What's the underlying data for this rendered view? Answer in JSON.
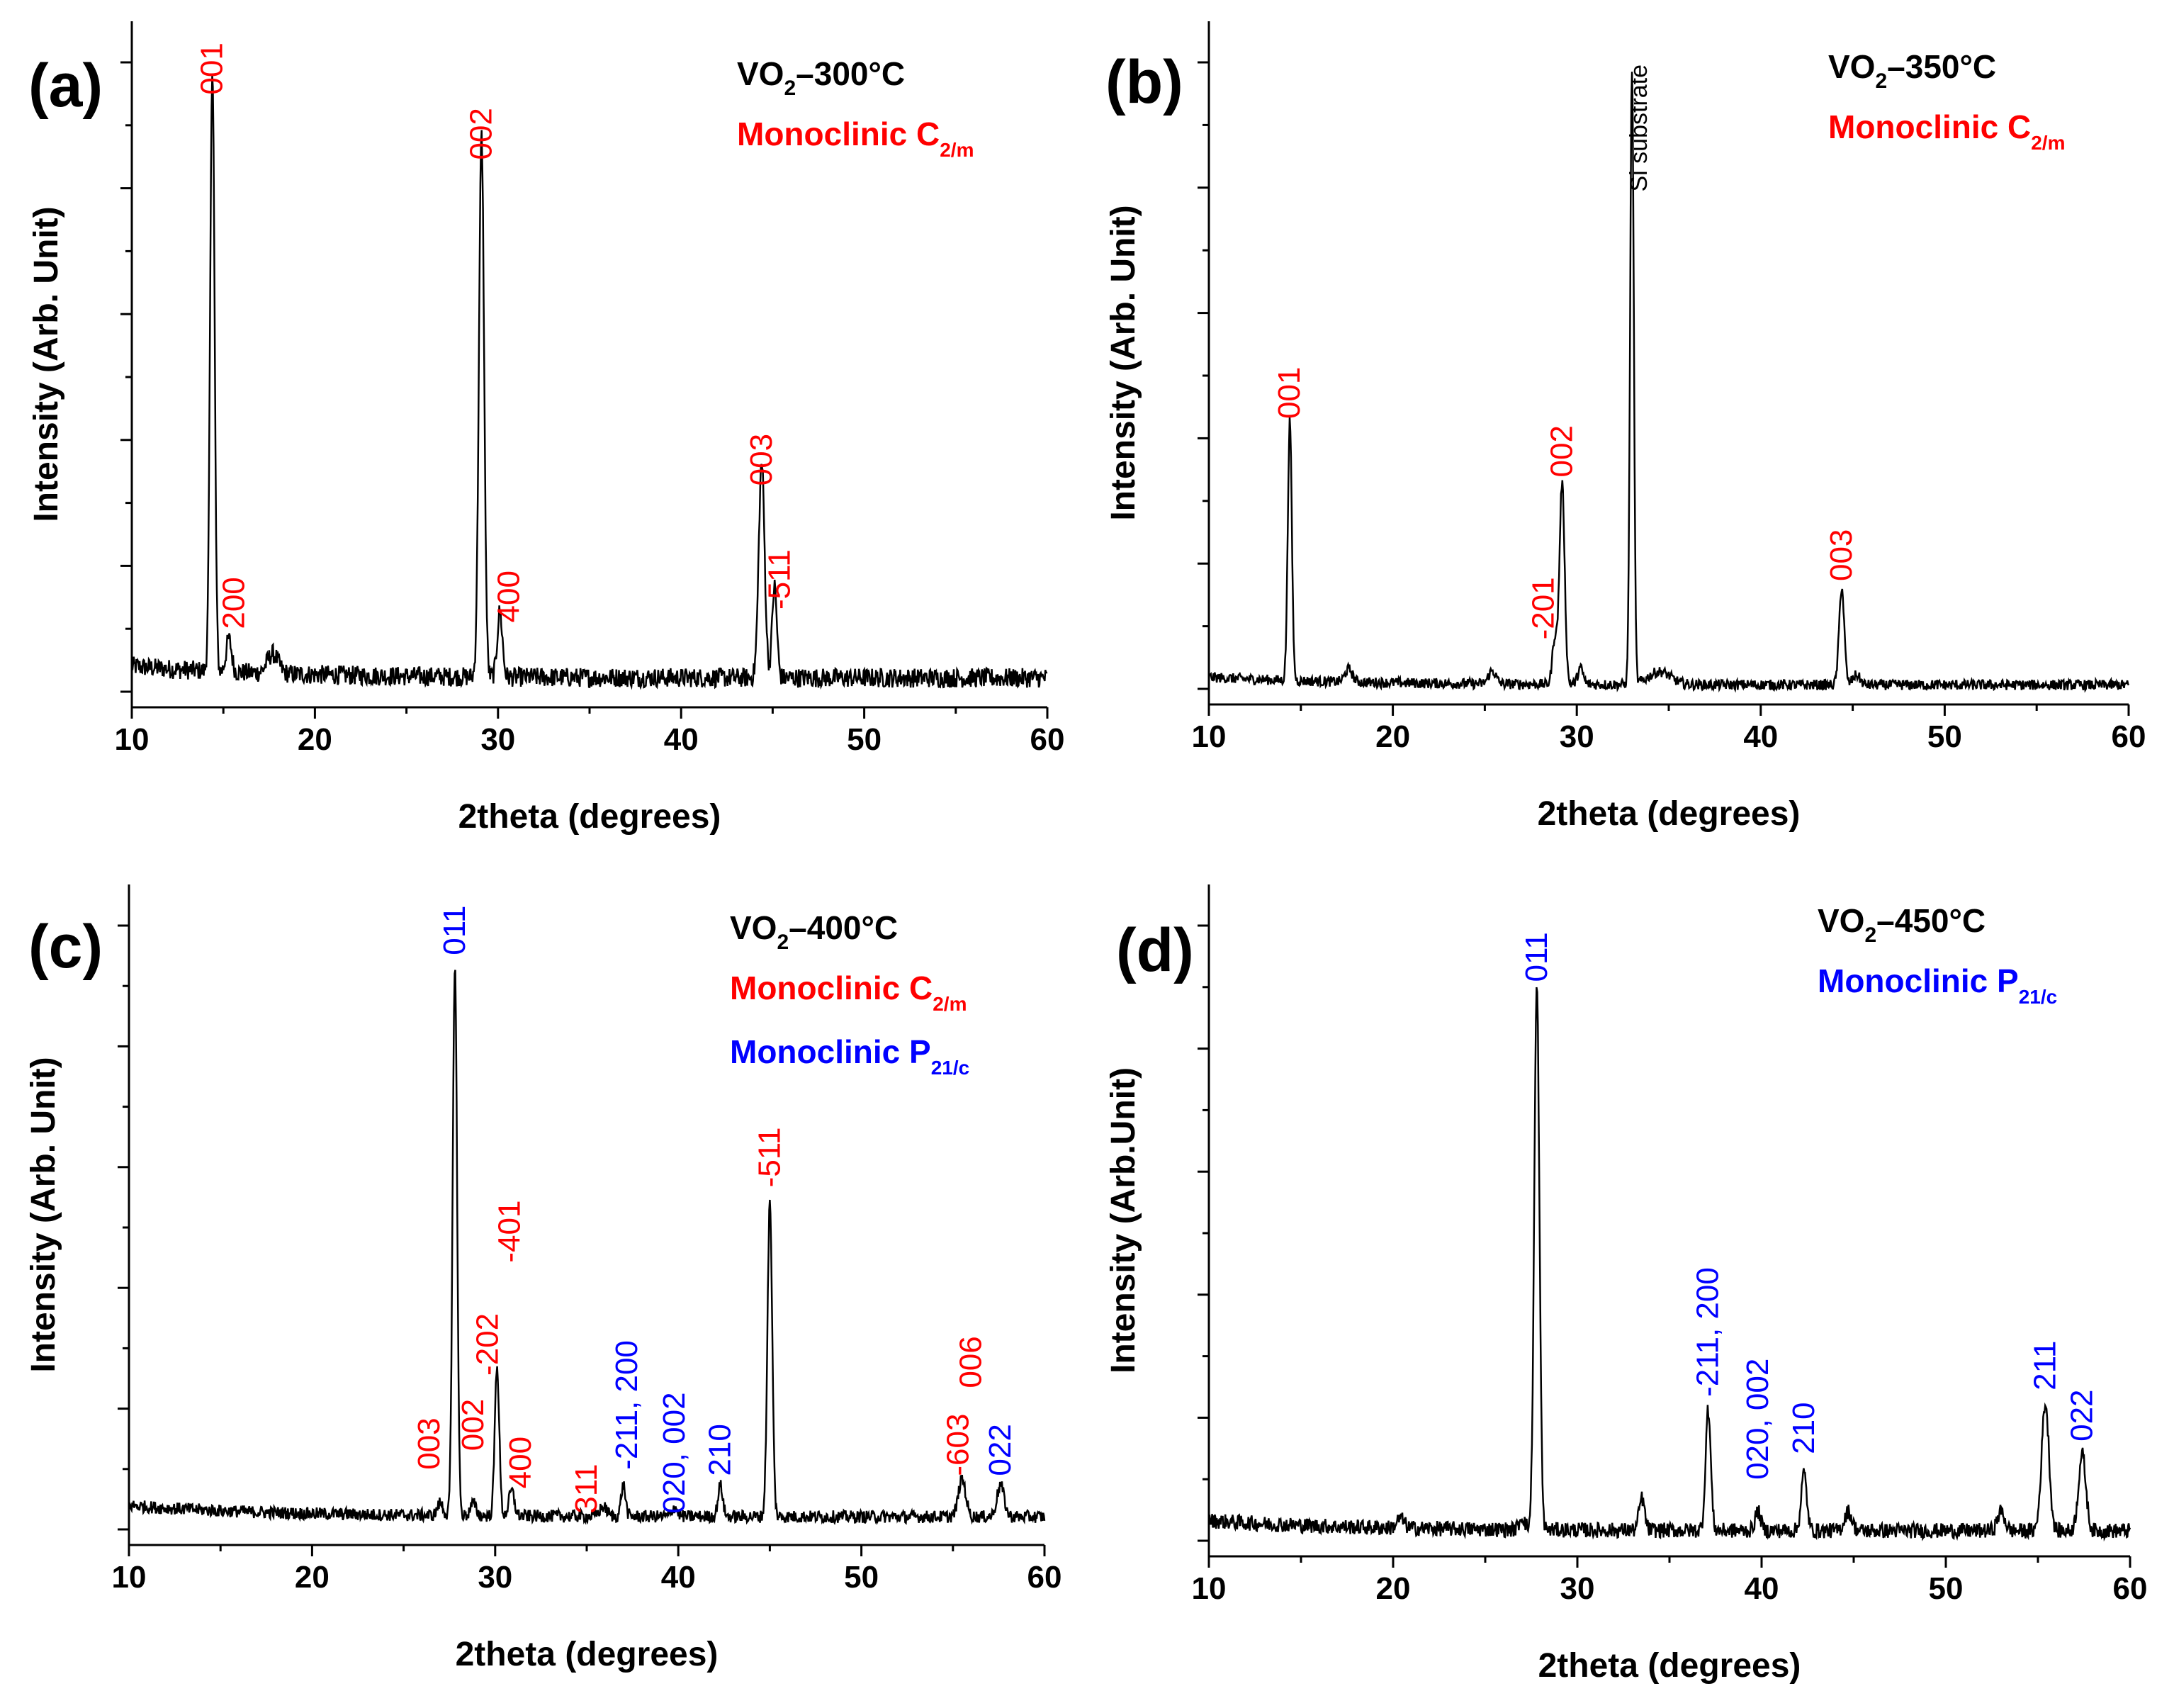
{
  "panel_labels": [
    "(a)",
    "(b)",
    "(c)",
    "(d)"
  ],
  "chart_data": [
    {
      "type": "line",
      "panel": "(a)",
      "title": "VO2_300°C",
      "title_base": "VO",
      "title_sub": "2",
      "title_rest": "–300°C",
      "phases": [
        {
          "base": "Monoclinic C",
          "sub": "2/m",
          "color": "#ff0000"
        }
      ],
      "xlabel": "2theta (degrees)",
      "ylabel": "Intensity (Arb. Unit)",
      "xlim": [
        10,
        60
      ],
      "ylim": [
        0,
        1
      ],
      "xticks": [
        10,
        20,
        30,
        40,
        50,
        60
      ],
      "xtick_labels": [
        "10",
        "20",
        "30",
        "40",
        "50",
        "60"
      ],
      "baseline": 0.045,
      "noise": 0.015,
      "peaks": [
        {
          "x": 14.4,
          "h": 0.93,
          "w": 0.12
        },
        {
          "x": 15.3,
          "h": 0.05,
          "w": 0.15
        },
        {
          "x": 17.7,
          "h": 0.03,
          "w": 0.3
        },
        {
          "x": 29.1,
          "h": 0.83,
          "w": 0.14
        },
        {
          "x": 30.1,
          "h": 0.1,
          "w": 0.14
        },
        {
          "x": 44.4,
          "h": 0.33,
          "w": 0.16
        },
        {
          "x": 45.1,
          "h": 0.14,
          "w": 0.13
        }
      ],
      "peak_labels": [
        {
          "text": "001",
          "x": 14.4,
          "y": 0.94,
          "color": "#ff0000"
        },
        {
          "text": "200",
          "x": 15.6,
          "y": 0.12,
          "color": "#ff0000"
        },
        {
          "text": "002",
          "x": 29.1,
          "y": 0.84,
          "color": "#ff0000"
        },
        {
          "text": "400",
          "x": 30.6,
          "y": 0.13,
          "color": "#ff0000"
        },
        {
          "text": "003",
          "x": 44.4,
          "y": 0.34,
          "color": "#ff0000"
        },
        {
          "text": "-511",
          "x": 45.4,
          "y": 0.15,
          "color": "#ff0000"
        }
      ],
      "legend_location": "top-right"
    },
    {
      "type": "line",
      "panel": "(b)",
      "title": "VO2_350°C",
      "title_base": "VO",
      "title_sub": "2",
      "title_rest": "–350°C",
      "phases": [
        {
          "base": "Monoclinic C",
          "sub": "2/m",
          "color": "#ff0000"
        }
      ],
      "xlabel": "2theta (degrees)",
      "ylabel": "Intensity (Arb. Unit)",
      "xlim": [
        10,
        60
      ],
      "ylim": [
        0,
        1
      ],
      "xticks": [
        10,
        20,
        30,
        40,
        50,
        60
      ],
      "xtick_labels": [
        "10",
        "20",
        "30",
        "40",
        "50",
        "60"
      ],
      "baseline": 0.03,
      "noise": 0.008,
      "peaks": [
        {
          "x": 14.4,
          "h": 0.4,
          "w": 0.11
        },
        {
          "x": 17.6,
          "h": 0.02,
          "w": 0.2
        },
        {
          "x": 25.4,
          "h": 0.02,
          "w": 0.2
        },
        {
          "x": 28.8,
          "h": 0.07,
          "w": 0.13
        },
        {
          "x": 29.2,
          "h": 0.31,
          "w": 0.14
        },
        {
          "x": 30.2,
          "h": 0.025,
          "w": 0.15
        },
        {
          "x": 33.0,
          "h": 0.95,
          "w": 0.1
        },
        {
          "x": 34.5,
          "h": 0.02,
          "w": 0.6
        },
        {
          "x": 44.4,
          "h": 0.15,
          "w": 0.14
        },
        {
          "x": 45.2,
          "h": 0.015,
          "w": 0.2
        }
      ],
      "peak_labels": [
        {
          "text": "001",
          "x": 14.4,
          "y": 0.44,
          "color": "#ff0000"
        },
        {
          "text": "-201",
          "x": 28.2,
          "y": 0.1,
          "color": "#ff0000"
        },
        {
          "text": "002",
          "x": 29.2,
          "y": 0.35,
          "color": "#ff0000"
        },
        {
          "text": "003",
          "x": 44.4,
          "y": 0.19,
          "color": "#ff0000"
        }
      ],
      "annotations": [
        {
          "text": "Si substrate",
          "x": 33.8,
          "y": 0.79,
          "color": "#000000"
        }
      ],
      "legend_location": "top-right"
    },
    {
      "type": "line",
      "panel": "(c)",
      "title": "VO2_400°C",
      "title_base": "VO",
      "title_sub": "2",
      "title_rest": "–400°C",
      "phases": [
        {
          "base": "Monoclinic C",
          "sub": "2/m",
          "color": "#ff0000"
        },
        {
          "base": "Monoclinic P",
          "sub": "21/c",
          "color": "#0000ff"
        }
      ],
      "xlabel": "2theta (degrees)",
      "ylabel": "Intensity (Arb. Unit)",
      "xlim": [
        10,
        60
      ],
      "ylim": [
        0,
        1
      ],
      "xticks": [
        10,
        20,
        30,
        40,
        50,
        60
      ],
      "xtick_labels": [
        "10",
        "20",
        "30",
        "40",
        "50",
        "60"
      ],
      "baseline": 0.045,
      "noise": 0.01,
      "peaks": [
        {
          "x": 27.0,
          "h": 0.02,
          "w": 0.15
        },
        {
          "x": 27.8,
          "h": 0.88,
          "w": 0.12
        },
        {
          "x": 28.8,
          "h": 0.02,
          "w": 0.15
        },
        {
          "x": 30.1,
          "h": 0.24,
          "w": 0.12
        },
        {
          "x": 30.9,
          "h": 0.04,
          "w": 0.15
        },
        {
          "x": 35.9,
          "h": 0.015,
          "w": 0.2
        },
        {
          "x": 37.0,
          "h": 0.05,
          "w": 0.12
        },
        {
          "x": 39.8,
          "h": 0.015,
          "w": 0.15
        },
        {
          "x": 42.3,
          "h": 0.05,
          "w": 0.13
        },
        {
          "x": 45.0,
          "h": 0.5,
          "w": 0.13
        },
        {
          "x": 55.5,
          "h": 0.06,
          "w": 0.2
        },
        {
          "x": 57.6,
          "h": 0.05,
          "w": 0.2
        }
      ],
      "peak_labels": [
        {
          "text": "011",
          "x": 27.8,
          "y": 0.94,
          "color": "#0000ff"
        },
        {
          "text": "003",
          "x": 26.4,
          "y": 0.12,
          "color": "#ff0000"
        },
        {
          "text": "002",
          "x": 28.8,
          "y": 0.15,
          "color": "#ff0000"
        },
        {
          "text": "-202",
          "x": 29.6,
          "y": 0.27,
          "color": "#ff0000"
        },
        {
          "text": "-401",
          "x": 30.8,
          "y": 0.45,
          "color": "#ff0000"
        },
        {
          "text": "400",
          "x": 31.4,
          "y": 0.09,
          "color": "#ff0000"
        },
        {
          "text": "311",
          "x": 35.0,
          "y": 0.05,
          "color": "#ff0000"
        },
        {
          "text": "-211, 200",
          "x": 37.2,
          "y": 0.12,
          "color": "#0000ff"
        },
        {
          "text": "020, 002",
          "x": 39.8,
          "y": 0.05,
          "color": "#0000ff"
        },
        {
          "text": "210",
          "x": 42.3,
          "y": 0.11,
          "color": "#0000ff"
        },
        {
          "text": "-511",
          "x": 45.0,
          "y": 0.57,
          "color": "#ff0000"
        },
        {
          "text": "-603",
          "x": 55.3,
          "y": 0.11,
          "color": "#ff0000"
        },
        {
          "text": "006",
          "x": 56.0,
          "y": 0.25,
          "color": "#ff0000"
        },
        {
          "text": "022",
          "x": 57.6,
          "y": 0.11,
          "color": "#0000ff"
        }
      ],
      "legend_location": "top-right"
    },
    {
      "type": "line",
      "panel": "(d)",
      "title": "VO2_450°C",
      "title_base": "VO",
      "title_sub": "2",
      "title_rest": "–450°C",
      "phases": [
        {
          "base": "Monoclinic P",
          "sub": "21/c",
          "color": "#0000ff"
        }
      ],
      "xlabel": "2theta (degrees)",
      "ylabel": "Intensity (Arb.Unit)",
      "xlim": [
        10,
        60
      ],
      "ylim": [
        0,
        1
      ],
      "xticks": [
        10,
        20,
        30,
        40,
        50,
        60
      ],
      "xtick_labels": [
        "10",
        "20",
        "30",
        "40",
        "50",
        "60"
      ],
      "baseline": 0.04,
      "noise": 0.012,
      "peaks": [
        {
          "x": 20.4,
          "h": 0.015,
          "w": 0.2
        },
        {
          "x": 27.0,
          "h": 0.02,
          "w": 0.15
        },
        {
          "x": 27.8,
          "h": 0.85,
          "w": 0.14
        },
        {
          "x": 33.5,
          "h": 0.05,
          "w": 0.15
        },
        {
          "x": 37.1,
          "h": 0.19,
          "w": 0.14
        },
        {
          "x": 39.8,
          "h": 0.03,
          "w": 0.15
        },
        {
          "x": 42.3,
          "h": 0.09,
          "w": 0.15
        },
        {
          "x": 44.7,
          "h": 0.03,
          "w": 0.2
        },
        {
          "x": 53.0,
          "h": 0.03,
          "w": 0.2
        },
        {
          "x": 55.4,
          "h": 0.2,
          "w": 0.2
        },
        {
          "x": 57.4,
          "h": 0.12,
          "w": 0.2
        }
      ],
      "peak_labels": [
        {
          "text": "011",
          "x": 27.8,
          "y": 0.9,
          "color": "#0000ff"
        },
        {
          "text": "-211, 200",
          "x": 37.1,
          "y": 0.25,
          "color": "#0000ff"
        },
        {
          "text": "020, 002",
          "x": 39.8,
          "y": 0.12,
          "color": "#0000ff"
        },
        {
          "text": "210",
          "x": 42.3,
          "y": 0.16,
          "color": "#0000ff"
        },
        {
          "text": "211",
          "x": 55.4,
          "y": 0.26,
          "color": "#0000ff"
        },
        {
          "text": "022",
          "x": 57.4,
          "y": 0.18,
          "color": "#0000ff"
        }
      ],
      "legend_location": "top-right"
    }
  ]
}
